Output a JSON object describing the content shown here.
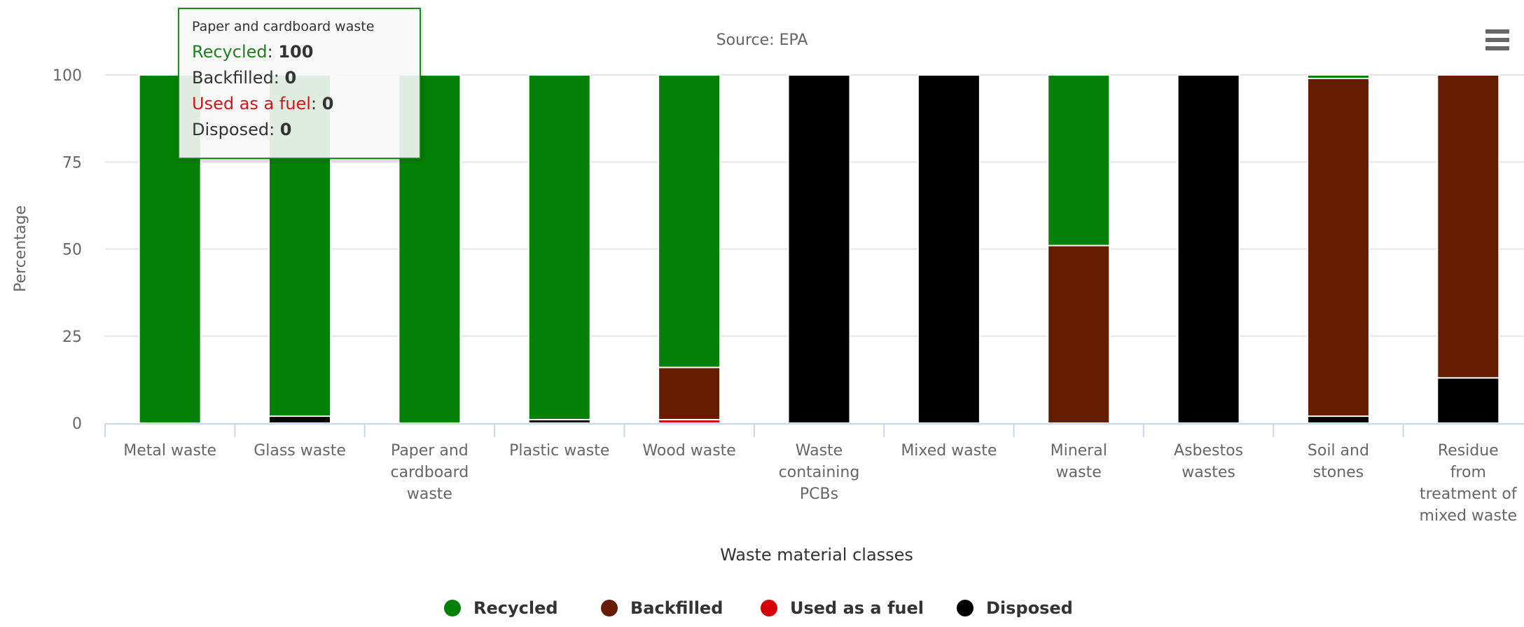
{
  "chart": {
    "subtitle": "Source: EPA",
    "menu_icon": "hamburger-menu-icon",
    "colors": {
      "axis_text": "#666666",
      "grid": "#e6e6e6"
    }
  },
  "tooltip": {
    "header": "Paper and cardboard waste",
    "rows": [
      {
        "label": "Recycled",
        "value": "100",
        "color": "#1f7f1d"
      },
      {
        "label": "Backfilled",
        "value": "0",
        "color": "#333333"
      },
      {
        "label": "Used as a fuel",
        "value": "0",
        "color": "#d01616"
      },
      {
        "label": "Disposed",
        "value": "0",
        "color": "#333333"
      }
    ]
  },
  "legend": {
    "items": [
      {
        "label": "Recycled",
        "color": "#058107"
      },
      {
        "label": "Backfilled",
        "color": "#651d00"
      },
      {
        "label": "Used as a fuel",
        "color": "#d6000a"
      },
      {
        "label": "Disposed",
        "color": "#000000"
      }
    ]
  },
  "chart_data": {
    "type": "bar",
    "stacked": true,
    "subtitle": "Source: EPA",
    "xlabel": "Waste material classes",
    "ylabel": "Percentage",
    "ylim": [
      0,
      100
    ],
    "yticks": [
      0,
      25,
      50,
      75,
      100
    ],
    "grid": true,
    "legend_position": "bottom-center",
    "categories": [
      [
        "Metal waste"
      ],
      [
        "Glass waste"
      ],
      [
        "Paper and",
        "cardboard",
        "waste"
      ],
      [
        "Plastic waste"
      ],
      [
        "Wood waste"
      ],
      [
        "Waste",
        "containing",
        "PCBs"
      ],
      [
        "Mixed waste"
      ],
      [
        "Mineral",
        "waste"
      ],
      [
        "Asbestos",
        "wastes"
      ],
      [
        "Soil and",
        "stones"
      ],
      [
        "Residue",
        "from",
        "treatment of",
        "mixed waste"
      ]
    ],
    "series": [
      {
        "name": "Recycled",
        "color": "#058107",
        "values": [
          100,
          98,
          100,
          99,
          84,
          0,
          0,
          49,
          0,
          1,
          0
        ]
      },
      {
        "name": "Backfilled",
        "color": "#651d00",
        "values": [
          0,
          0,
          0,
          0,
          15,
          0,
          0,
          51,
          0,
          97,
          87
        ]
      },
      {
        "name": "Used as a fuel",
        "color": "#d6000a",
        "values": [
          0,
          0,
          0,
          0,
          1,
          0,
          0,
          0,
          0,
          0,
          0
        ]
      },
      {
        "name": "Disposed",
        "color": "#000000",
        "values": [
          0,
          2,
          0,
          1,
          0,
          100,
          100,
          0,
          100,
          2,
          13
        ]
      }
    ]
  }
}
